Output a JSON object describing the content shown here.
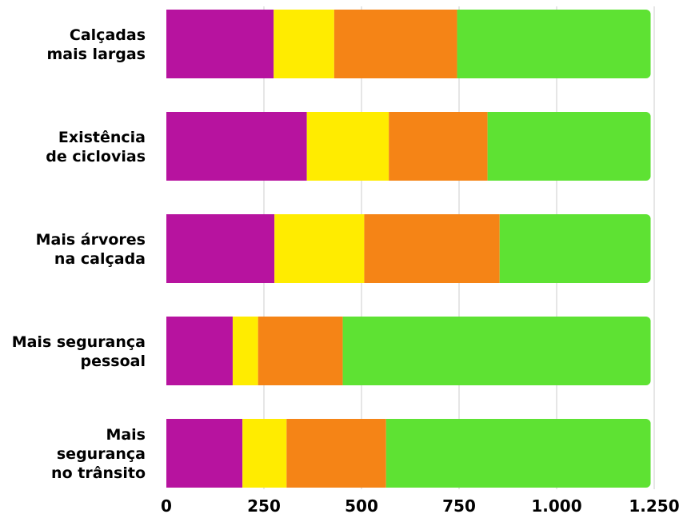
{
  "chart_data": {
    "type": "bar",
    "orientation": "horizontal",
    "stacked": true,
    "categories": [
      [
        "Calçadas",
        "mais largas"
      ],
      [
        "Existência",
        "de ciclovias"
      ],
      [
        "Mais árvores",
        "na calçada"
      ],
      [
        "Mais segurança",
        "pessoal"
      ],
      [
        "Mais",
        "segurança",
        "no trânsito"
      ]
    ],
    "series": [
      {
        "color": "#b7139f",
        "values": [
          275,
          360,
          277,
          170,
          195
        ]
      },
      {
        "color": "#ffec00",
        "values": [
          155,
          210,
          230,
          65,
          113
        ]
      },
      {
        "color": "#f58416",
        "values": [
          315,
          253,
          347,
          217,
          255
        ]
      },
      {
        "color": "#5ee233",
        "values": [
          496,
          418,
          387,
          789,
          678
        ]
      }
    ],
    "xlim": [
      0,
      1250
    ],
    "xticks": [
      0,
      250,
      500,
      750,
      1000,
      1250
    ],
    "xtick_labels": [
      "0",
      "250",
      "500",
      "750",
      "1.000",
      "1.250"
    ],
    "grid": true,
    "legend": "none",
    "title": "",
    "xlabel": "",
    "ylabel": ""
  }
}
